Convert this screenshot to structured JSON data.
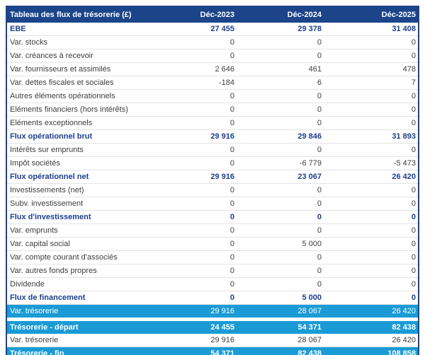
{
  "colors": {
    "header_navy": "#1b4489",
    "bold_text_navy": "#1c3e90",
    "highlight_cyan": "#1a9bd5",
    "regular_text": "#3d3d3d"
  },
  "table": {
    "title": "Tableau des flux de trésorerie (£)",
    "columns": [
      "Déc-2023",
      "Déc-2024",
      "Déc-2025"
    ],
    "rows": [
      {
        "label": "EBE",
        "values": [
          "27 455",
          "29 378",
          "31 408"
        ],
        "style": "bold"
      },
      {
        "label": "Var. stocks",
        "values": [
          "0",
          "0",
          "0"
        ],
        "style": "normal"
      },
      {
        "label": "Var. créances à recevoir",
        "values": [
          "0",
          "0",
          "0"
        ],
        "style": "normal"
      },
      {
        "label": "Var. fournisseurs et assimilés",
        "values": [
          "2 646",
          "461",
          "478"
        ],
        "style": "normal"
      },
      {
        "label": "Var. dettes fiscales et sociales",
        "values": [
          "-184",
          "6",
          "7"
        ],
        "style": "normal"
      },
      {
        "label": "Autres éléments opérationnels",
        "values": [
          "0",
          "0",
          "0"
        ],
        "style": "normal"
      },
      {
        "label": "Eléments financiers (hors intérêts)",
        "values": [
          "0",
          "0",
          "0"
        ],
        "style": "normal"
      },
      {
        "label": "Eléments exceptionnels",
        "values": [
          "0",
          "0",
          "0"
        ],
        "style": "normal"
      },
      {
        "label": "Flux opérationnel brut",
        "values": [
          "29 916",
          "29 846",
          "31 893"
        ],
        "style": "bold"
      },
      {
        "label": "Intérêts sur emprunts",
        "values": [
          "0",
          "0",
          "0"
        ],
        "style": "normal"
      },
      {
        "label": "Impôt sociétés",
        "values": [
          "0",
          "-6 779",
          "-5 473"
        ],
        "style": "normal"
      },
      {
        "label": "Flux opérationnel net",
        "values": [
          "29 916",
          "23 067",
          "26 420"
        ],
        "style": "bold"
      },
      {
        "label": "Investissements (net)",
        "values": [
          "0",
          "0",
          "0"
        ],
        "style": "normal"
      },
      {
        "label": "Subv. investissement",
        "values": [
          "0",
          "0",
          "0"
        ],
        "style": "normal"
      },
      {
        "label": "Flux d'investissement",
        "values": [
          "0",
          "0",
          "0"
        ],
        "style": "bold"
      },
      {
        "label": "Var. emprunts",
        "values": [
          "0",
          "0",
          "0"
        ],
        "style": "normal"
      },
      {
        "label": "Var. capital social",
        "values": [
          "0",
          "5 000",
          "0"
        ],
        "style": "normal"
      },
      {
        "label": "Var. compte courant d'associés",
        "values": [
          "0",
          "0",
          "0"
        ],
        "style": "normal"
      },
      {
        "label": "Var. autres fonds propres",
        "values": [
          "0",
          "0",
          "0"
        ],
        "style": "normal"
      },
      {
        "label": "Dividende",
        "values": [
          "0",
          "0",
          "0"
        ],
        "style": "normal"
      },
      {
        "label": "Flux de financement",
        "values": [
          "0",
          "5 000",
          "0"
        ],
        "style": "bold"
      },
      {
        "label": "Var. trésorerie",
        "values": [
          "29 916",
          "28 067",
          "26 420"
        ],
        "style": "highlight"
      },
      {
        "label": "",
        "values": [],
        "style": "spacer"
      },
      {
        "label": "Trésorerie - départ",
        "values": [
          "24 455",
          "54 371",
          "82 438"
        ],
        "style": "highlight-bold"
      },
      {
        "label": "Var. trésorerie",
        "values": [
          "29 916",
          "28 067",
          "26 420"
        ],
        "style": "normal"
      },
      {
        "label": "Trésorerie - fin",
        "values": [
          "54 371",
          "82 438",
          "108 858"
        ],
        "style": "highlight-bold"
      }
    ]
  }
}
